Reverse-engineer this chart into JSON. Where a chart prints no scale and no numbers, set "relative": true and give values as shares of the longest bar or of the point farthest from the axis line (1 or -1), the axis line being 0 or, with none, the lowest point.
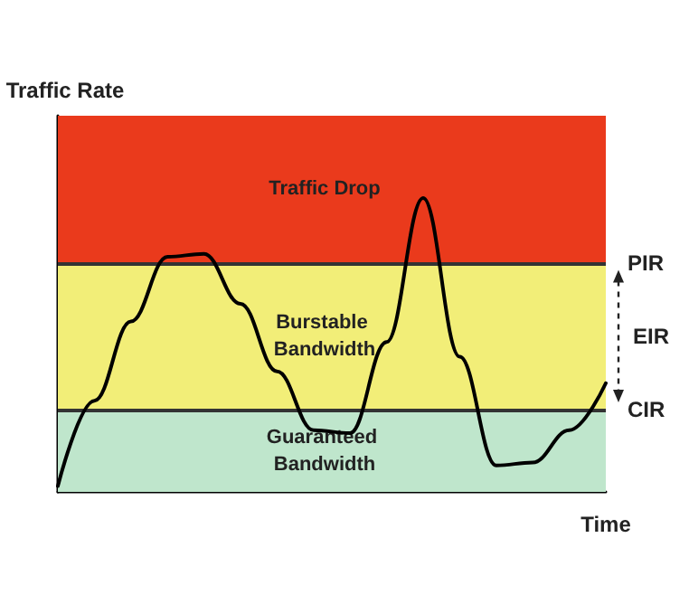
{
  "chart_data": {
    "type": "line",
    "relative": true,
    "ylabel": "Traffic Rate",
    "xlabel": "Time",
    "categories": [
      null,
      null,
      null,
      null,
      null,
      null,
      null,
      null,
      null,
      null,
      null,
      null,
      null,
      null,
      null,
      null
    ],
    "series": [
      {
        "color": "#000000",
        "values": [
          0.02,
          0.31,
          0.58,
          0.8,
          0.81,
          0.64,
          0.41,
          0.21,
          0.2,
          0.51,
          1,
          0.46,
          0.09,
          0.1,
          0.21,
          0.37
        ]
      }
    ],
    "bands": [
      {
        "axis": "y",
        "from": 0.78,
        "to": 1.28,
        "label": "Traffic Drop",
        "color": "#ea3a1c"
      },
      {
        "axis": "y",
        "from": 0.28,
        "to": 0.78,
        "label": "Burstable Bandwidth",
        "color": "#f2ee78"
      },
      {
        "axis": "y",
        "from": 0,
        "to": 0.28,
        "label": "Guaranteed Bandwidth",
        "color": "#bfe6cc"
      }
    ],
    "ref_lines": [
      {
        "axis": "y",
        "value": 0.78,
        "label": "PIR",
        "color": "#333333"
      },
      {
        "axis": "y",
        "value": 0.28,
        "label": "CIR",
        "color": "#333333"
      }
    ],
    "annotations": [
      "EIR"
    ],
    "grid": false,
    "marker": "none",
    "line_style": "solid"
  }
}
